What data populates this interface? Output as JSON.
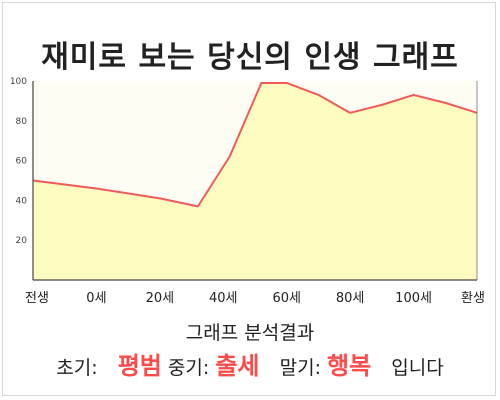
{
  "chart_data": {
    "type": "area",
    "title": "재미로 보는 당신의 인생 그래프",
    "x": [
      0,
      10,
      20,
      26,
      31,
      36,
      40,
      45,
      50,
      55,
      60,
      65,
      70
    ],
    "xticks": [
      {
        "x": 0,
        "label": "전생"
      },
      {
        "x": 10,
        "label": "0세"
      },
      {
        "x": 20,
        "label": "20세"
      },
      {
        "x": 30,
        "label": "40세"
      },
      {
        "x": 40,
        "label": "60세"
      },
      {
        "x": 50,
        "label": "80세"
      },
      {
        "x": 60,
        "label": "100세"
      },
      {
        "x": 70,
        "label": "환생"
      }
    ],
    "series": [
      {
        "values": [
          50,
          46,
          41,
          37,
          62,
          99,
          99,
          93,
          84,
          88,
          93,
          89,
          84
        ]
      }
    ],
    "xlim": [
      0,
      70
    ],
    "ylim": [
      0,
      100
    ],
    "yticks": [
      20,
      40,
      60,
      80,
      100
    ],
    "colors": {
      "line": "#f05a5a",
      "fill": "#fcfbc0",
      "plot_bg": "#fefdf3",
      "axis": "#444444"
    }
  },
  "summary": {
    "heading": "그래프 분석결과",
    "early_label": "초기:",
    "early_value": "평범",
    "mid_label": "중기:",
    "mid_value": "출세",
    "late_label": "말기:",
    "late_value": "행복",
    "suffix": "입니다"
  }
}
